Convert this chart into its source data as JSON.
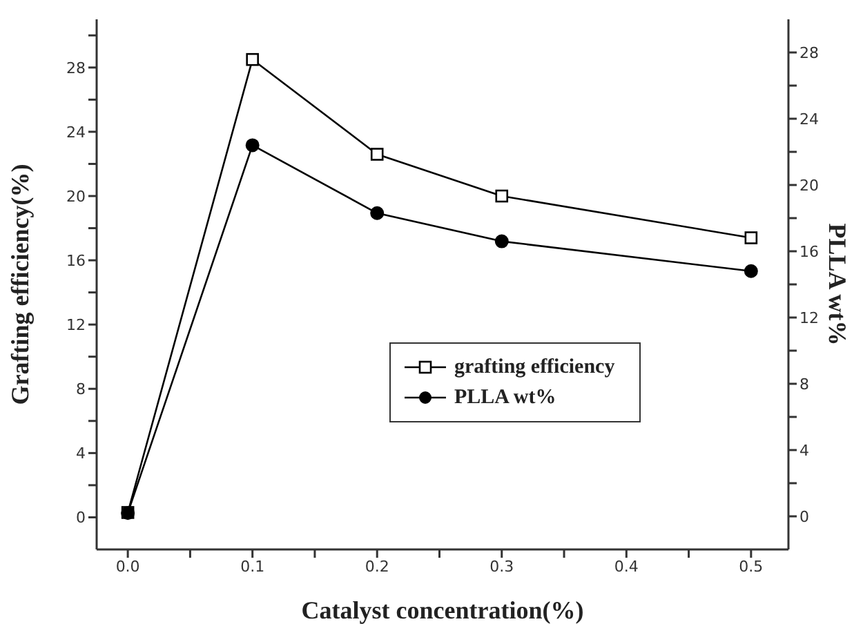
{
  "chart_data": {
    "type": "line",
    "xlabel": "Catalyst concentration(%)",
    "ylabel": "Grafting efficiency(%)",
    "y2label": "PLLA wt%",
    "x": [
      0,
      0.1,
      0.2,
      0.3,
      0.5
    ],
    "series": [
      {
        "name": "grafting efficiency",
        "color": "#000000",
        "marker": "square",
        "values": [
          0.3,
          28.5,
          22.6,
          20.0,
          17.4
        ]
      },
      {
        "name": "PLLA wt%",
        "color": "#000000",
        "marker": "circle",
        "axis": "y2",
        "values": [
          0.2,
          22.4,
          18.3,
          16.6,
          14.8
        ]
      }
    ],
    "xlim": [
      -0.025,
      0.53
    ],
    "xticks": [
      {
        "value": 0,
        "label": "0.0"
      },
      {
        "value": 0.05,
        "label": null
      },
      0.1,
      {
        "value": 0.15,
        "label": null
      },
      0.2,
      {
        "value": 0.25,
        "label": null
      },
      0.3,
      {
        "value": 0.35,
        "label": null
      },
      0.4,
      {
        "value": 0.45,
        "label": null
      },
      0.5
    ],
    "ylim": [
      -2,
      31
    ],
    "yticks": [
      0,
      {
        "value": 2,
        "label": null
      },
      4,
      {
        "value": 6,
        "label": null
      },
      8,
      {
        "value": 10,
        "label": null
      },
      12,
      {
        "value": 14,
        "label": null
      },
      16,
      {
        "value": 18,
        "label": null
      },
      20,
      {
        "value": 22,
        "label": null
      },
      24,
      {
        "value": 26,
        "label": null
      },
      28,
      {
        "value": 30,
        "label": null
      }
    ],
    "y2lim": [
      -2,
      30
    ],
    "y2ticks": [
      0,
      {
        "value": 2,
        "label": null
      },
      4,
      {
        "value": 6,
        "label": null
      },
      8,
      {
        "value": 10,
        "label": null
      },
      12,
      {
        "value": 14,
        "label": null
      },
      16,
      {
        "value": 18,
        "label": null
      },
      20,
      {
        "value": 22,
        "label": null
      },
      24,
      {
        "value": 26,
        "label": null
      },
      28
    ],
    "legend": "right",
    "grid": false,
    "line_style": "solid"
  }
}
